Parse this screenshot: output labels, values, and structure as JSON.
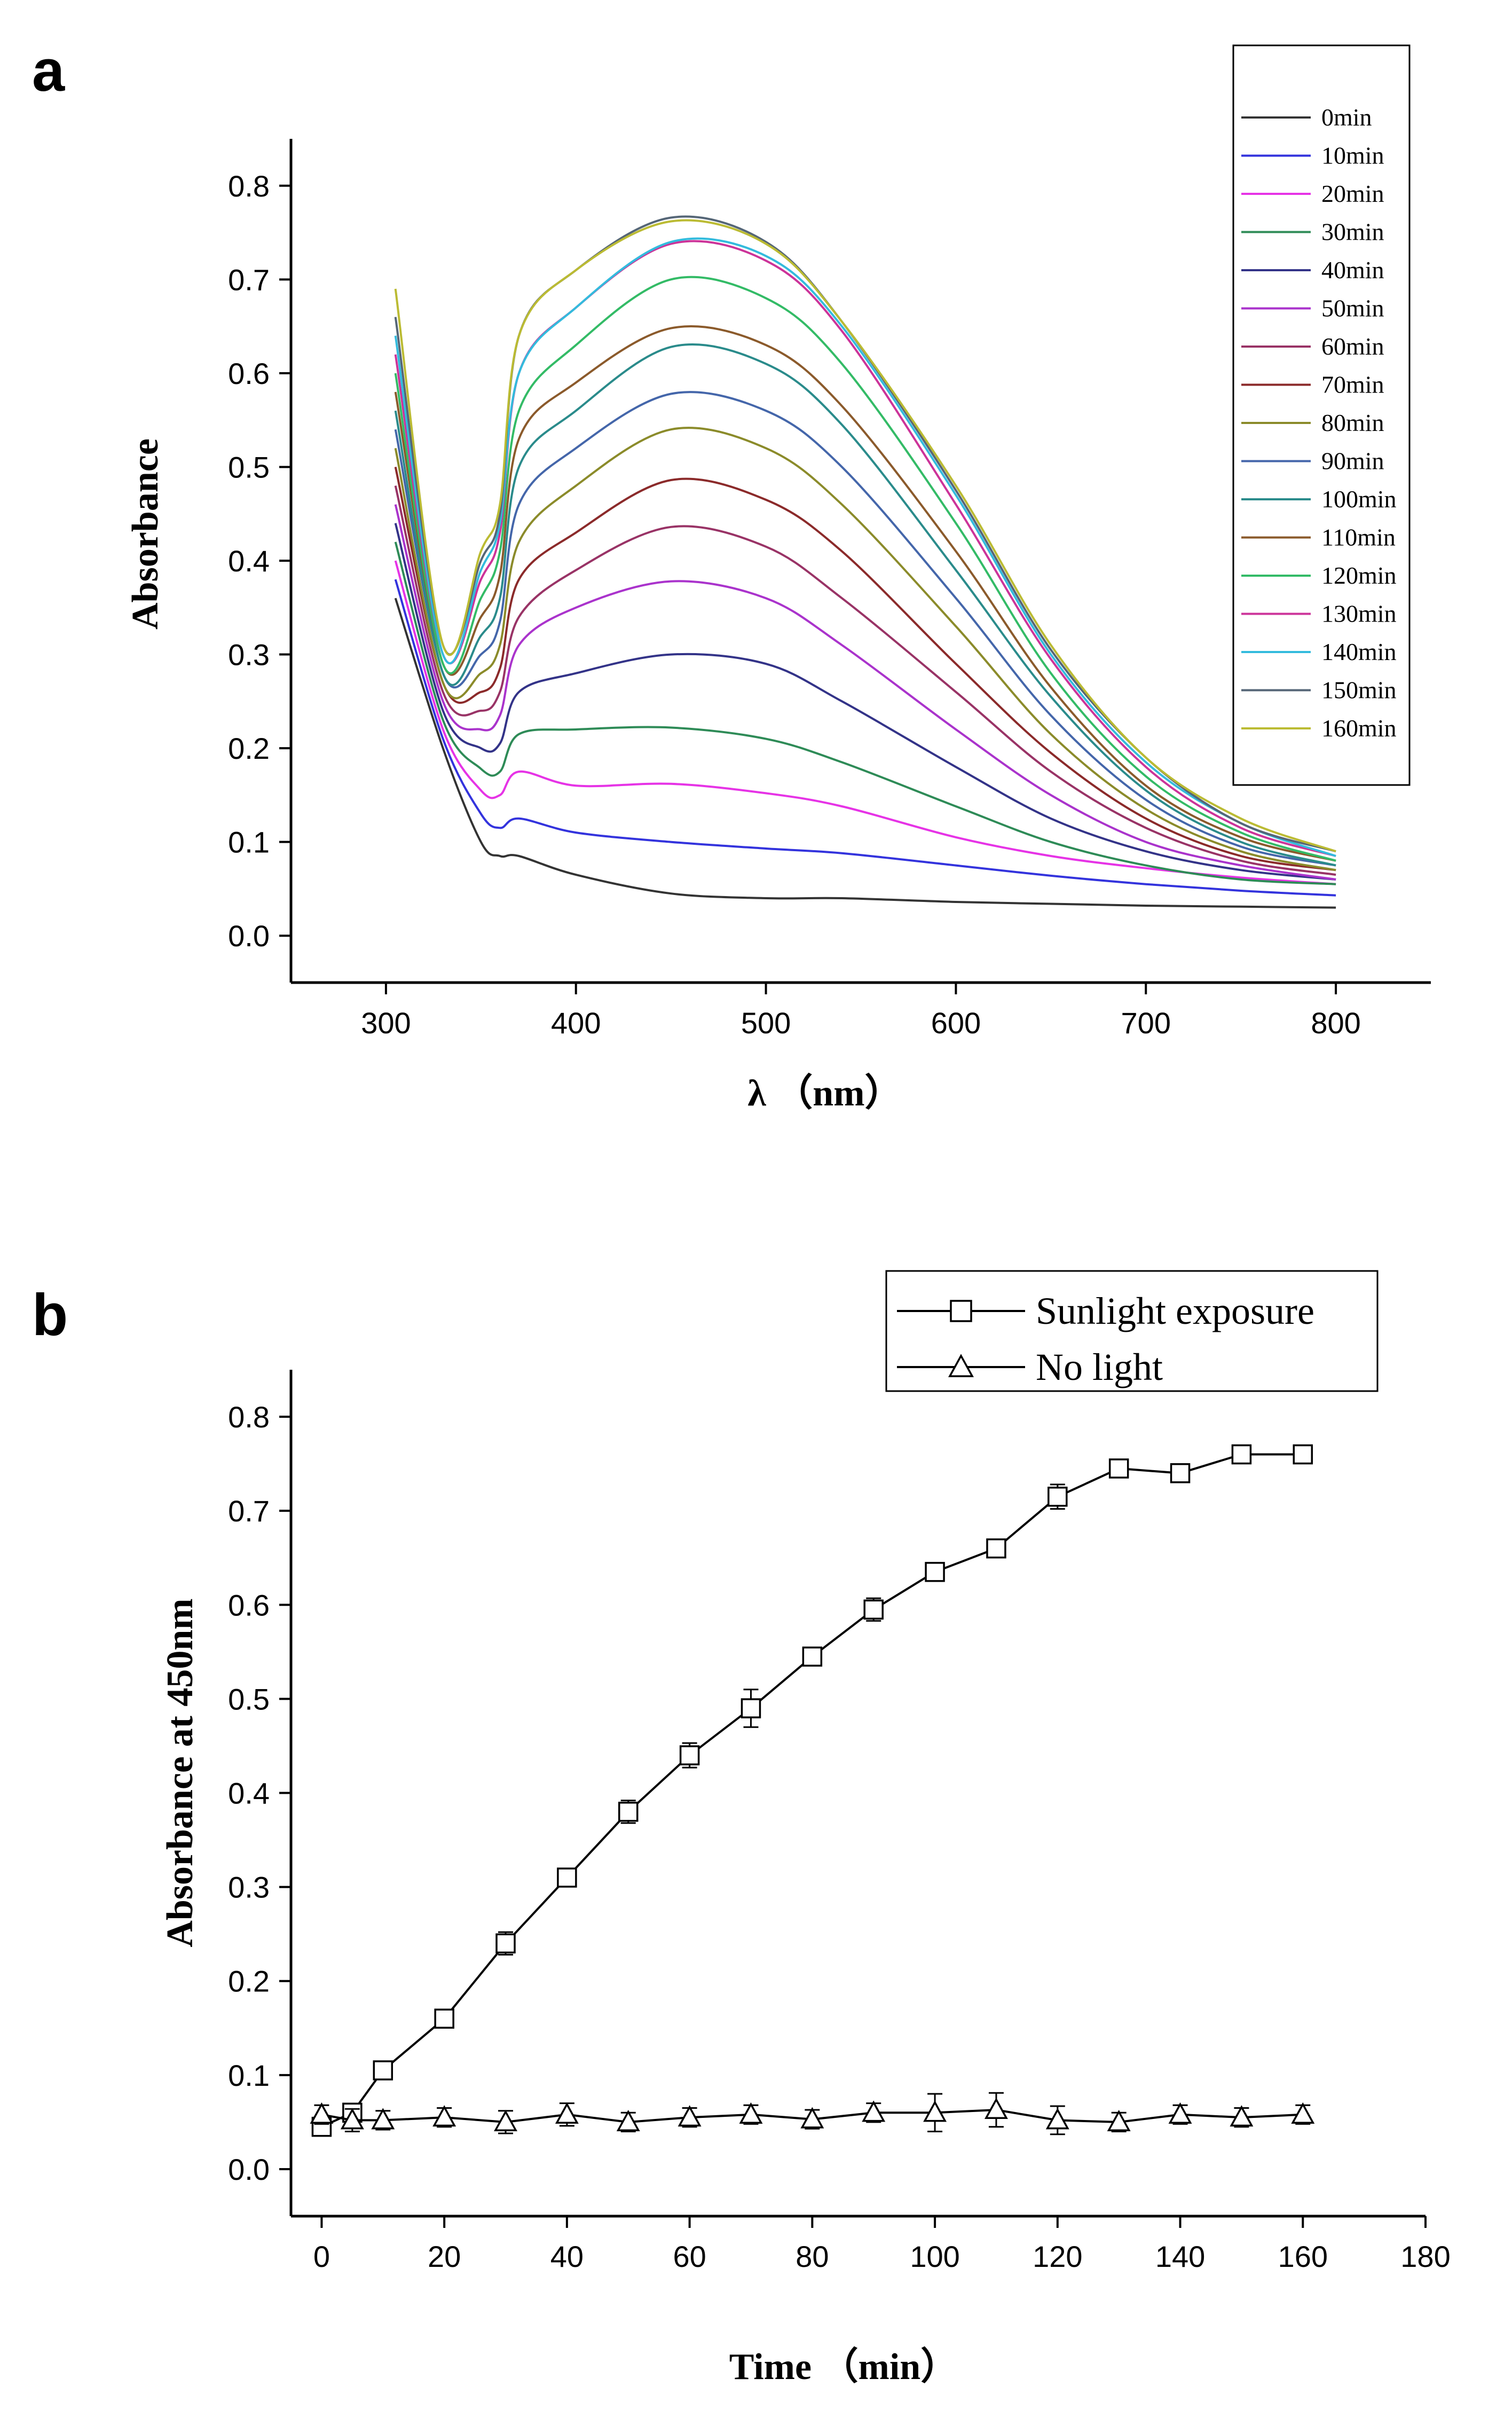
{
  "chart_data": [
    {
      "panel": "a",
      "type": "line",
      "xlabel": "λ （nm）",
      "ylabel": "Absorbance",
      "xlim": [
        250,
        850
      ],
      "ylim": [
        -0.05,
        0.85
      ],
      "xticks": [
        300,
        400,
        500,
        600,
        700,
        800
      ],
      "xtick_labels": [
        "300",
        "400",
        "500",
        "600",
        "700",
        "800"
      ],
      "yticks": [
        0.0,
        0.1,
        0.2,
        0.3,
        0.4,
        0.5,
        0.6,
        0.7,
        0.8
      ],
      "ytick_labels": [
        "0.0",
        "0.1",
        "0.2",
        "0.3",
        "0.4",
        "0.5",
        "0.6",
        "0.7",
        "0.8"
      ],
      "legend_position": "top-right",
      "x": [
        305,
        330,
        350,
        360,
        370,
        400,
        450,
        500,
        540,
        600,
        650,
        700,
        750,
        800
      ],
      "series": [
        {
          "name": "0min",
          "color": "#333333",
          "values": [
            0.36,
            0.2,
            0.1,
            0.085,
            0.085,
            0.065,
            0.045,
            0.04,
            0.04,
            0.036,
            0.034,
            0.032,
            0.031,
            0.03
          ]
        },
        {
          "name": "10min",
          "color": "#3333dd",
          "values": [
            0.38,
            0.21,
            0.13,
            0.115,
            0.125,
            0.11,
            0.1,
            0.093,
            0.088,
            0.075,
            0.064,
            0.055,
            0.048,
            0.043
          ]
        },
        {
          "name": "20min",
          "color": "#e633e6",
          "values": [
            0.4,
            0.22,
            0.155,
            0.15,
            0.175,
            0.16,
            0.162,
            0.152,
            0.138,
            0.105,
            0.085,
            0.072,
            0.062,
            0.055
          ]
        },
        {
          "name": "30min",
          "color": "#2e8b57",
          "values": [
            0.42,
            0.23,
            0.178,
            0.175,
            0.215,
            0.22,
            0.222,
            0.21,
            0.185,
            0.138,
            0.1,
            0.075,
            0.06,
            0.055
          ]
        },
        {
          "name": "40min",
          "color": "#333388",
          "values": [
            0.44,
            0.24,
            0.2,
            0.205,
            0.26,
            0.28,
            0.3,
            0.29,
            0.25,
            0.18,
            0.125,
            0.09,
            0.07,
            0.06
          ]
        },
        {
          "name": "50min",
          "color": "#aa33cc",
          "values": [
            0.46,
            0.25,
            0.22,
            0.235,
            0.31,
            0.35,
            0.378,
            0.36,
            0.31,
            0.22,
            0.15,
            0.1,
            0.075,
            0.06
          ]
        },
        {
          "name": "60min",
          "color": "#993366",
          "values": [
            0.48,
            0.26,
            0.24,
            0.26,
            0.34,
            0.39,
            0.436,
            0.415,
            0.36,
            0.26,
            0.175,
            0.115,
            0.08,
            0.065
          ]
        },
        {
          "name": "70min",
          "color": "#8b2a2a",
          "values": [
            0.5,
            0.27,
            0.26,
            0.285,
            0.38,
            0.43,
            0.486,
            0.465,
            0.41,
            0.29,
            0.195,
            0.125,
            0.085,
            0.07
          ]
        },
        {
          "name": "80min",
          "color": "#8b8b2a",
          "values": [
            0.52,
            0.27,
            0.28,
            0.31,
            0.42,
            0.48,
            0.54,
            0.52,
            0.46,
            0.33,
            0.215,
            0.135,
            0.09,
            0.07
          ]
        },
        {
          "name": "90min",
          "color": "#4466aa",
          "values": [
            0.54,
            0.28,
            0.3,
            0.335,
            0.46,
            0.52,
            0.578,
            0.56,
            0.5,
            0.36,
            0.235,
            0.145,
            0.095,
            0.075
          ]
        },
        {
          "name": "100min",
          "color": "#2a8b8b",
          "values": [
            0.56,
            0.28,
            0.32,
            0.36,
            0.5,
            0.56,
            0.628,
            0.61,
            0.545,
            0.39,
            0.255,
            0.155,
            0.1,
            0.075
          ]
        },
        {
          "name": "110min",
          "color": "#8b5a2b",
          "values": [
            0.58,
            0.29,
            0.34,
            0.385,
            0.53,
            0.59,
            0.648,
            0.63,
            0.565,
            0.41,
            0.265,
            0.16,
            0.105,
            0.08
          ]
        },
        {
          "name": "120min",
          "color": "#33bb66",
          "values": [
            0.6,
            0.29,
            0.36,
            0.41,
            0.56,
            0.63,
            0.7,
            0.68,
            0.61,
            0.44,
            0.28,
            0.17,
            0.11,
            0.08
          ]
        },
        {
          "name": "130min",
          "color": "#cc3399",
          "values": [
            0.62,
            0.3,
            0.38,
            0.43,
            0.6,
            0.67,
            0.738,
            0.72,
            0.645,
            0.46,
            0.295,
            0.18,
            0.115,
            0.085
          ]
        },
        {
          "name": "140min",
          "color": "#33bbdd",
          "values": [
            0.64,
            0.3,
            0.39,
            0.44,
            0.6,
            0.67,
            0.74,
            0.725,
            0.65,
            0.47,
            0.3,
            0.185,
            0.12,
            0.085
          ]
        },
        {
          "name": "150min",
          "color": "#556677",
          "values": [
            0.66,
            0.31,
            0.4,
            0.45,
            0.64,
            0.71,
            0.766,
            0.74,
            0.655,
            0.475,
            0.305,
            0.19,
            0.12,
            0.09
          ]
        },
        {
          "name": "160min",
          "color": "#bbbb33",
          "values": [
            0.69,
            0.31,
            0.41,
            0.46,
            0.64,
            0.71,
            0.762,
            0.738,
            0.655,
            0.48,
            0.31,
            0.19,
            0.125,
            0.09
          ]
        }
      ]
    },
    {
      "panel": "b",
      "type": "line",
      "xlabel": "Time （min）",
      "ylabel": "Absorbance at 450nm",
      "xlim": [
        -5,
        180
      ],
      "ylim": [
        -0.05,
        0.85
      ],
      "xticks": [
        0,
        20,
        40,
        60,
        80,
        100,
        120,
        140,
        160,
        180
      ],
      "xtick_labels": [
        "0",
        "20",
        "40",
        "60",
        "80",
        "100",
        "120",
        "140",
        "160",
        "180"
      ],
      "yticks": [
        0.0,
        0.1,
        0.2,
        0.3,
        0.4,
        0.5,
        0.6,
        0.7,
        0.8
      ],
      "ytick_labels": [
        "0.0",
        "0.1",
        "0.2",
        "0.3",
        "0.4",
        "0.5",
        "0.6",
        "0.7",
        "0.8"
      ],
      "legend_position": "top-right",
      "x": [
        0,
        5,
        10,
        20,
        30,
        40,
        50,
        60,
        70,
        80,
        90,
        100,
        110,
        120,
        130,
        140,
        150,
        160
      ],
      "series": [
        {
          "name": "Sunlight exposure",
          "marker": "square",
          "values": [
            0.045,
            0.06,
            0.105,
            0.16,
            0.24,
            0.31,
            0.38,
            0.44,
            0.49,
            0.545,
            0.595,
            0.635,
            0.66,
            0.715,
            0.745,
            0.74,
            0.76,
            0.76
          ],
          "errors": [
            0.008,
            0.008,
            0.006,
            0.006,
            0.012,
            0.006,
            0.012,
            0.013,
            0.02,
            0.006,
            0.012,
            0.008,
            0.006,
            0.013,
            0.006,
            0.008,
            0.006,
            0.007
          ]
        },
        {
          "name": "No light",
          "marker": "triangle",
          "values": [
            0.058,
            0.052,
            0.052,
            0.055,
            0.05,
            0.058,
            0.05,
            0.055,
            0.058,
            0.053,
            0.06,
            0.06,
            0.063,
            0.052,
            0.05,
            0.058,
            0.055,
            0.058
          ],
          "errors": [
            0.01,
            0.012,
            0.01,
            0.01,
            0.012,
            0.012,
            0.01,
            0.01,
            0.01,
            0.01,
            0.01,
            0.02,
            0.018,
            0.015,
            0.01,
            0.01,
            0.01,
            0.01
          ]
        }
      ]
    }
  ]
}
